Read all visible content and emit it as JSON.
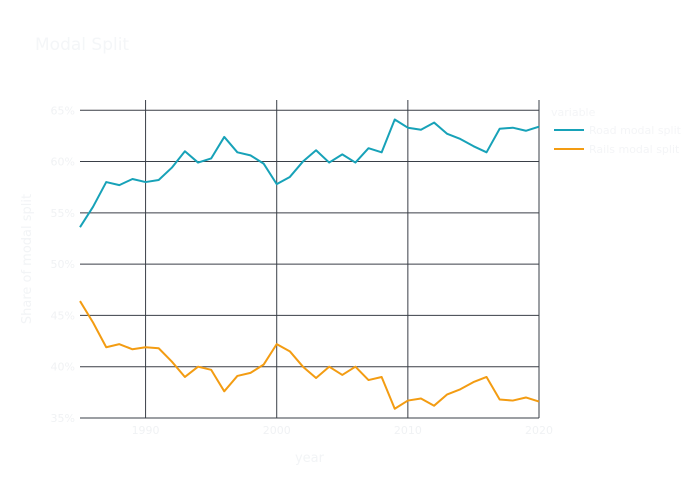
{
  "chart_data": {
    "type": "line",
    "title": "Modal Split",
    "xlabel": "year",
    "ylabel": "Share of modal split",
    "xlim": [
      1985,
      2020
    ],
    "ylim": [
      35,
      66
    ],
    "x_ticks": [
      1990,
      2000,
      2010,
      2020
    ],
    "x_tick_labels": [
      "1990",
      "2000",
      "2010",
      "2020"
    ],
    "y_ticks": [
      35,
      40,
      45,
      50,
      55,
      60,
      65
    ],
    "y_tick_labels": [
      "35%",
      "40%",
      "45%",
      "50%",
      "55%",
      "60%",
      "65%"
    ],
    "grid": true,
    "legend": {
      "title": "variable",
      "position": "top-right"
    },
    "x": [
      1985,
      1986,
      1987,
      1988,
      1989,
      1990,
      1991,
      1992,
      1993,
      1994,
      1995,
      1996,
      1997,
      1998,
      1999,
      2000,
      2001,
      2002,
      2003,
      2004,
      2005,
      2006,
      2007,
      2008,
      2009,
      2010,
      2011,
      2012,
      2013,
      2014,
      2015,
      2016,
      2017,
      2018,
      2019,
      2020
    ],
    "series": [
      {
        "name": "Road modal split",
        "color": "#17a2b8",
        "values": [
          53.6,
          55.6,
          58.0,
          57.7,
          58.3,
          58.0,
          58.2,
          59.4,
          61.0,
          59.9,
          60.3,
          62.4,
          60.9,
          60.6,
          59.8,
          57.8,
          58.5,
          60.0,
          61.1,
          59.9,
          60.7,
          59.9,
          61.3,
          60.9,
          64.1,
          63.3,
          63.1,
          63.8,
          62.7,
          62.2,
          61.5,
          60.9,
          63.2,
          63.3,
          63.0,
          63.4
        ],
        "label_x": "Road modal split"
      },
      {
        "name": "Rails modal split",
        "color": "#f39c12",
        "values": [
          46.4,
          44.3,
          41.9,
          42.2,
          41.7,
          41.9,
          41.8,
          40.5,
          39.0,
          40.0,
          39.7,
          37.6,
          39.1,
          39.4,
          40.2,
          42.2,
          41.5,
          40.0,
          38.9,
          40.0,
          39.2,
          40.0,
          38.7,
          39.0,
          35.9,
          36.7,
          36.9,
          36.2,
          37.3,
          37.8,
          38.5,
          39.0,
          36.8,
          36.7,
          37.0,
          36.6
        ]
      }
    ]
  }
}
